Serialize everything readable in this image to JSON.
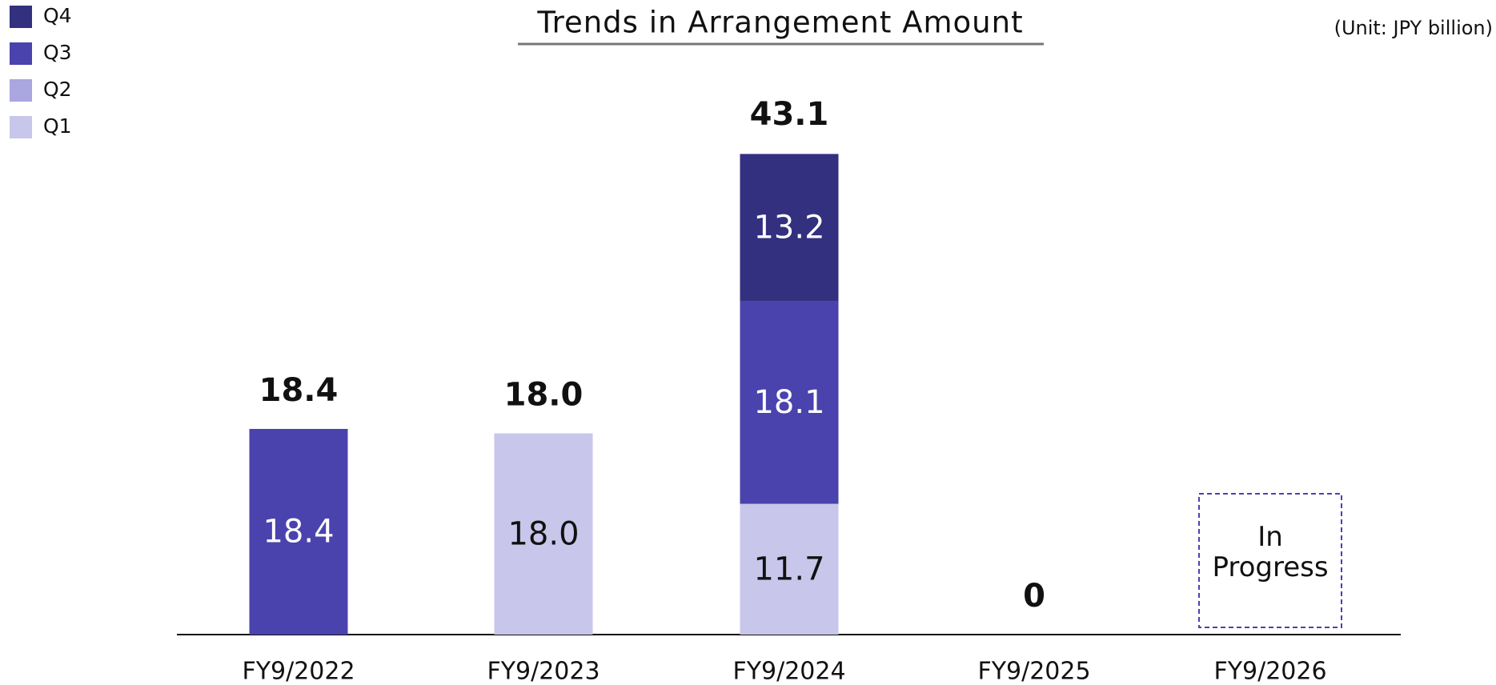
{
  "chart_data": {
    "type": "stacked_bar",
    "title": "Trends in Arrangement Amount",
    "unit": "(Unit: JPY billion)",
    "categories": [
      "FY9/2022",
      "FY9/2023",
      "FY9/2024",
      "FY9/2025",
      "FY9/2026"
    ],
    "series": [
      {
        "name": "Q1",
        "color": "#c8c6ea",
        "values": [
          null,
          18,
          11.7,
          null,
          null
        ],
        "value_labels": [
          null,
          "18.0",
          "11.7",
          null,
          null
        ]
      },
      {
        "name": "Q2",
        "color": "#a9a6e0",
        "values": [
          null,
          null,
          null,
          null,
          null
        ]
      },
      {
        "name": "Q3",
        "color": "#4a43ad",
        "values": [
          18.4,
          null,
          18.1,
          null,
          null
        ],
        "value_labels": [
          "18.4",
          null,
          "18.1",
          null,
          null
        ]
      },
      {
        "name": "Q4",
        "color": "#33307f",
        "values": [
          null,
          null,
          13.2,
          null,
          null
        ],
        "value_labels": [
          null,
          null,
          "13.2",
          null,
          null
        ]
      }
    ],
    "totals": [
      18.4,
      18,
      43.1,
      0,
      null
    ],
    "total_labels": [
      "18.4",
      "18.0",
      "43.1",
      "0",
      null
    ],
    "annotation": "In Progress",
    "legend": "top-left"
  }
}
